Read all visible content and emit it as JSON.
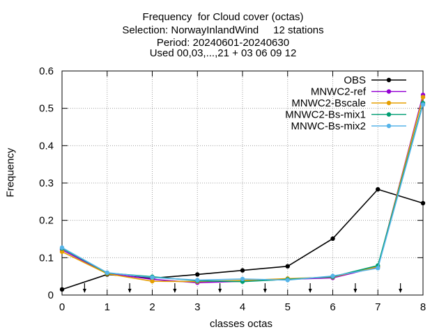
{
  "chart_data": {
    "type": "line",
    "title_lines": [
      "Frequency  for Cloud cover (octas)",
      "Selection: NorwayInlandWind     12 stations",
      "Period: 20240601-20240630",
      "Used 00,03,...,21 + 03 06 09 12"
    ],
    "xlabel": "classes octas",
    "ylabel": "Frequency",
    "x": [
      0,
      1,
      2,
      3,
      4,
      5,
      6,
      7,
      8
    ],
    "xlim": [
      0,
      8
    ],
    "ylim": [
      0,
      0.6
    ],
    "xticks": [
      "0",
      "1",
      "2",
      "3",
      "4",
      "5",
      "6",
      "7",
      "8"
    ],
    "yticks": [
      "0",
      "0.1",
      "0.2",
      "0.3",
      "0.4",
      "0.5",
      "0.6"
    ],
    "grid": true,
    "legend_position": "top-right",
    "arrow_markers_x": [
      0.5,
      1.5,
      2.5,
      3.5,
      4.5,
      5.5,
      6.5,
      7.5
    ],
    "series": [
      {
        "name": "OBS",
        "color": "#000000",
        "values": [
          0.015,
          0.055,
          0.045,
          0.055,
          0.066,
          0.077,
          0.151,
          0.283,
          0.246
        ]
      },
      {
        "name": "MNWC2-ref",
        "color": "#9400d3",
        "values": [
          0.121,
          0.058,
          0.042,
          0.033,
          0.037,
          0.042,
          0.046,
          0.075,
          0.536
        ]
      },
      {
        "name": "MNWC2-Bscale",
        "color": "#e69f00",
        "values": [
          0.116,
          0.057,
          0.037,
          0.036,
          0.039,
          0.044,
          0.048,
          0.076,
          0.53
        ]
      },
      {
        "name": "MNWC2-Bs-mix1",
        "color": "#009e73",
        "values": [
          0.125,
          0.059,
          0.049,
          0.038,
          0.036,
          0.042,
          0.049,
          0.079,
          0.514
        ]
      },
      {
        "name": "MNWC-Bs-mix2",
        "color": "#56b4e9",
        "values": [
          0.127,
          0.06,
          0.047,
          0.04,
          0.043,
          0.04,
          0.051,
          0.072,
          0.51
        ]
      }
    ]
  }
}
